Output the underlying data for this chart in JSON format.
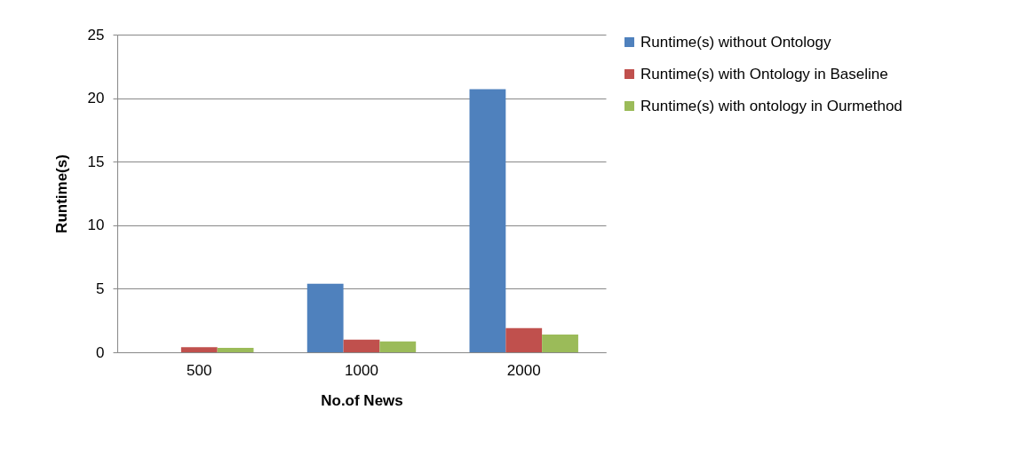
{
  "chart_data": {
    "type": "bar",
    "xlabel": "No.of News",
    "ylabel": "Runtime(s)",
    "categories": [
      "500",
      "1000",
      "2000"
    ],
    "series": [
      {
        "name": "Runtime(s) without Ontology",
        "color": "#4f81bd",
        "values": [
          0,
          5.4,
          20.7
        ]
      },
      {
        "name": "Runtime(s) with Ontology in Baseline",
        "color": "#c0504d",
        "values": [
          0.4,
          1.0,
          1.9
        ]
      },
      {
        "name": "Runtime(s) with ontology in Ourmethod",
        "color": "#9bbb59",
        "values": [
          0.35,
          0.85,
          1.4
        ]
      }
    ],
    "ylim": [
      0,
      25
    ],
    "yticks": [
      0,
      5,
      10,
      15,
      20,
      25
    ],
    "grid": "y",
    "legend": "right"
  }
}
